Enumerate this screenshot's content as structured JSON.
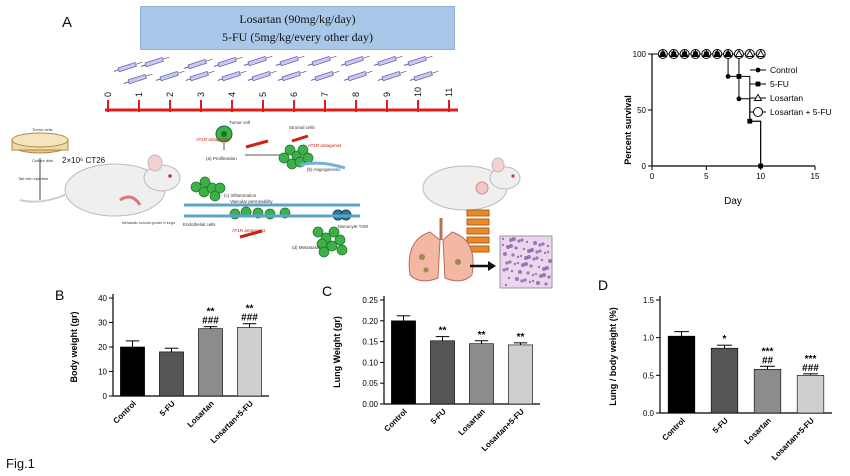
{
  "figure_label": "Fig.1",
  "panel_a": {
    "letter": "A",
    "dose_line1": "Losartan (90mg/kg/day)",
    "dose_line2": "5-FU (5mg/kg/every other day)",
    "timeline_ticks": [
      "0",
      "1",
      "2",
      "3",
      "4",
      "5",
      "6",
      "7",
      "8",
      "9",
      "10",
      "11"
    ],
    "cell_dish_label1": "Tumor cells",
    "cell_dish_label2": "Culture dish",
    "injection_label": "2×10⁶ CT26",
    "tail_label": "Tail vein injection",
    "met_label": "Metastatic tumoral growth in lungs",
    "tumor_cell_label": "Tumor cell",
    "stromal_label": "Stromal cells",
    "at1r_label": "AT1R antagonist",
    "step_a": "(a) Proliferation",
    "step_b": "(b) Angiogenesis",
    "step_c": "(c) Inflammation",
    "vasc_perm": "Vascular permeability",
    "endothelial": "Endothelial cells",
    "monocyte": "Monocyte TAM",
    "step_d": "(d) Metastasis",
    "colors": {
      "timeline": "#e01b1b",
      "box": "#a9c7e8",
      "cell": "#3db04a",
      "mouse": "#efefef"
    }
  },
  "chart_data": [
    {
      "type": "line",
      "ylabel": "Percent survival",
      "xlabel": "Day",
      "xlim": [
        0,
        15
      ],
      "ylim": [
        0,
        100
      ],
      "xticks": [
        "0",
        "5",
        "10",
        "15"
      ],
      "yticks": [
        "0",
        "50",
        "100"
      ],
      "legend_position": "right",
      "series": [
        {
          "name": "Control",
          "marker": "filled-circle",
          "x": [
            1,
            2,
            3,
            4,
            5,
            6,
            7,
            8,
            9,
            10
          ],
          "y": [
            100,
            100,
            100,
            100,
            100,
            100,
            80,
            60,
            40,
            0
          ]
        },
        {
          "name": "5-FU",
          "marker": "filled-square",
          "x": [
            1,
            2,
            3,
            4,
            5,
            6,
            7,
            8,
            9,
            10
          ],
          "y": [
            100,
            100,
            100,
            100,
            100,
            100,
            100,
            80,
            40,
            0
          ]
        },
        {
          "name": "Losartan",
          "marker": "open-triangle",
          "x": [
            1,
            2,
            3,
            4,
            5,
            6,
            7,
            8,
            9,
            10
          ],
          "y": [
            100,
            100,
            100,
            100,
            100,
            100,
            100,
            100,
            100,
            100
          ]
        },
        {
          "name": "Losartan + 5-FU",
          "marker": "open-circle",
          "x": [
            1,
            2,
            3,
            4,
            5,
            6,
            7,
            8,
            9,
            10
          ],
          "y": [
            100,
            100,
            100,
            100,
            100,
            100,
            100,
            100,
            100,
            100
          ]
        }
      ]
    },
    {
      "type": "bar",
      "letter": "B",
      "ylabel": "Body weight (gr)",
      "ylim": [
        0,
        40
      ],
      "yticks": [
        "0",
        "10",
        "20",
        "30",
        "40"
      ],
      "categories": [
        "Control",
        "5-FU",
        "Losartan",
        "Losartan+5-FU"
      ],
      "values": [
        20,
        18,
        27.5,
        28
      ],
      "errors": [
        2.5,
        1.5,
        0.8,
        1.5
      ],
      "annotations": [
        "",
        "",
        "**\n###",
        "**\n###"
      ],
      "colors": [
        "#000000",
        "#555555",
        "#8c8c8c",
        "#cfcfcf"
      ]
    },
    {
      "type": "bar",
      "letter": "C",
      "ylabel": "Lung Weight (gr)",
      "ylim": [
        0,
        0.25
      ],
      "yticks": [
        "0.00",
        "0.05",
        "0.10",
        "0.15",
        "0.20",
        "0.25"
      ],
      "categories": [
        "Control",
        "5-FU",
        "Losartan",
        "Losartan+5-FU"
      ],
      "values": [
        0.2,
        0.152,
        0.145,
        0.142
      ],
      "errors": [
        0.012,
        0.01,
        0.007,
        0.005
      ],
      "annotations": [
        "",
        "**",
        "**",
        "**"
      ],
      "colors": [
        "#000000",
        "#555555",
        "#8c8c8c",
        "#cfcfcf"
      ]
    },
    {
      "type": "bar",
      "letter": "D",
      "ylabel": "Lung / body weight (%)",
      "ylim": [
        0,
        1.5
      ],
      "yticks": [
        "0.0",
        "0.5",
        "1.0",
        "1.5"
      ],
      "categories": [
        "Control",
        "5-FU",
        "Losartan",
        "Losartan+5-FU"
      ],
      "values": [
        1.02,
        0.86,
        0.58,
        0.5
      ],
      "errors": [
        0.06,
        0.04,
        0.04,
        0.02
      ],
      "annotations": [
        "",
        "*",
        "***\n##",
        "***\n###"
      ],
      "colors": [
        "#000000",
        "#555555",
        "#8c8c8c",
        "#cfcfcf"
      ]
    }
  ]
}
